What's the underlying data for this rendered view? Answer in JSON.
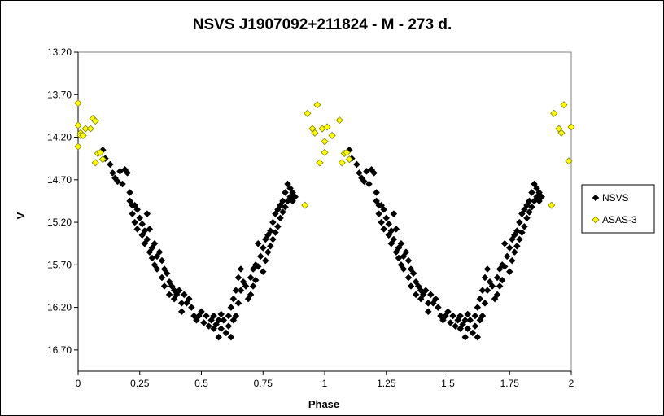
{
  "chart_data": {
    "type": "scatter",
    "title": "NSVS J1907092+211824  - M - 273 d.",
    "xlabel": "Phase",
    "ylabel": "V",
    "xlim": [
      0,
      2
    ],
    "ylim": [
      16.95,
      13.2
    ],
    "y_inverted": true,
    "grid": false,
    "legend_position": "right",
    "x_ticks": [
      "0",
      "0.25",
      "0.5",
      "0.75",
      "1",
      "1.25",
      "1.5",
      "1.75",
      "2"
    ],
    "y_ticks": [
      "13.20",
      "13.70",
      "14.20",
      "14.70",
      "15.20",
      "15.70",
      "16.20",
      "16.70"
    ],
    "series": [
      {
        "name": "NSVS",
        "color": "#000000",
        "marker": "diamond",
        "points": [
          [
            0.1,
            14.35
          ],
          [
            0.11,
            14.45
          ],
          [
            0.13,
            14.52
          ],
          [
            0.14,
            14.62
          ],
          [
            0.15,
            14.68
          ],
          [
            0.16,
            14.72
          ],
          [
            0.17,
            14.6
          ],
          [
            0.18,
            14.75
          ],
          [
            0.19,
            14.58
          ],
          [
            0.2,
            14.62
          ],
          [
            0.21,
            14.85
          ],
          [
            0.21,
            14.95
          ],
          [
            0.22,
            15.0
          ],
          [
            0.22,
            15.1
          ],
          [
            0.23,
            15.0
          ],
          [
            0.23,
            15.2
          ],
          [
            0.24,
            15.05
          ],
          [
            0.24,
            15.28
          ],
          [
            0.25,
            15.15
          ],
          [
            0.26,
            15.35
          ],
          [
            0.26,
            15.22
          ],
          [
            0.27,
            15.3
          ],
          [
            0.27,
            15.45
          ],
          [
            0.28,
            15.1
          ],
          [
            0.28,
            15.4
          ],
          [
            0.29,
            15.55
          ],
          [
            0.29,
            15.28
          ],
          [
            0.3,
            15.5
          ],
          [
            0.3,
            15.62
          ],
          [
            0.31,
            15.7
          ],
          [
            0.31,
            15.45
          ],
          [
            0.32,
            15.6
          ],
          [
            0.32,
            15.75
          ],
          [
            0.33,
            15.55
          ],
          [
            0.34,
            15.65
          ],
          [
            0.34,
            15.85
          ],
          [
            0.35,
            15.75
          ],
          [
            0.35,
            15.95
          ],
          [
            0.36,
            15.8
          ],
          [
            0.37,
            15.9
          ],
          [
            0.37,
            16.05
          ],
          [
            0.38,
            15.95
          ],
          [
            0.39,
            16.0
          ],
          [
            0.39,
            16.1
          ],
          [
            0.4,
            16.05
          ],
          [
            0.41,
            16.0
          ],
          [
            0.42,
            16.15
          ],
          [
            0.42,
            16.25
          ],
          [
            0.43,
            16.05
          ],
          [
            0.44,
            16.15
          ],
          [
            0.45,
            16.1
          ],
          [
            0.46,
            16.2
          ],
          [
            0.47,
            16.3
          ],
          [
            0.48,
            16.35
          ],
          [
            0.49,
            16.3
          ],
          [
            0.5,
            16.25
          ],
          [
            0.51,
            16.38
          ],
          [
            0.52,
            16.3
          ],
          [
            0.53,
            16.42
          ],
          [
            0.54,
            16.35
          ],
          [
            0.55,
            16.3
          ],
          [
            0.55,
            16.45
          ],
          [
            0.56,
            16.4
          ],
          [
            0.57,
            16.55
          ],
          [
            0.57,
            16.35
          ],
          [
            0.58,
            16.45
          ],
          [
            0.58,
            16.28
          ],
          [
            0.59,
            16.35
          ],
          [
            0.6,
            16.5
          ],
          [
            0.61,
            16.3
          ],
          [
            0.61,
            16.42
          ],
          [
            0.62,
            16.2
          ],
          [
            0.62,
            16.55
          ],
          [
            0.63,
            16.1
          ],
          [
            0.63,
            16.35
          ],
          [
            0.64,
            16.0
          ],
          [
            0.64,
            16.3
          ],
          [
            0.65,
            15.85
          ],
          [
            0.65,
            16.15
          ],
          [
            0.66,
            15.75
          ],
          [
            0.66,
            16.0
          ],
          [
            0.67,
            15.9
          ],
          [
            0.68,
            15.95
          ],
          [
            0.69,
            16.1
          ],
          [
            0.7,
            15.85
          ],
          [
            0.7,
            16.05
          ],
          [
            0.71,
            15.75
          ],
          [
            0.71,
            15.95
          ],
          [
            0.72,
            15.7
          ],
          [
            0.72,
            15.88
          ],
          [
            0.73,
            15.45
          ],
          [
            0.73,
            15.72
          ],
          [
            0.74,
            15.6
          ],
          [
            0.75,
            15.5
          ],
          [
            0.75,
            15.78
          ],
          [
            0.76,
            15.4
          ],
          [
            0.76,
            15.65
          ],
          [
            0.77,
            15.35
          ],
          [
            0.77,
            15.55
          ],
          [
            0.78,
            15.3
          ],
          [
            0.78,
            15.48
          ],
          [
            0.79,
            15.2
          ],
          [
            0.79,
            15.4
          ],
          [
            0.8,
            15.1
          ],
          [
            0.8,
            15.32
          ],
          [
            0.81,
            15.05
          ],
          [
            0.81,
            15.25
          ],
          [
            0.82,
            15.0
          ],
          [
            0.82,
            15.15
          ],
          [
            0.83,
            14.95
          ],
          [
            0.83,
            15.08
          ],
          [
            0.84,
            14.85
          ],
          [
            0.84,
            15.02
          ],
          [
            0.85,
            14.75
          ],
          [
            0.85,
            14.95
          ],
          [
            0.86,
            14.8
          ],
          [
            0.86,
            14.9
          ],
          [
            0.87,
            14.85
          ],
          [
            0.87,
            14.95
          ],
          [
            0.88,
            14.9
          ],
          [
            1.1,
            14.35
          ],
          [
            1.11,
            14.45
          ],
          [
            1.13,
            14.52
          ],
          [
            1.14,
            14.62
          ],
          [
            1.15,
            14.68
          ],
          [
            1.16,
            14.72
          ],
          [
            1.17,
            14.6
          ],
          [
            1.18,
            14.75
          ],
          [
            1.19,
            14.58
          ],
          [
            1.2,
            14.62
          ],
          [
            1.21,
            14.85
          ],
          [
            1.21,
            14.95
          ],
          [
            1.22,
            15.0
          ],
          [
            1.22,
            15.1
          ],
          [
            1.23,
            15.0
          ],
          [
            1.23,
            15.2
          ],
          [
            1.24,
            15.05
          ],
          [
            1.24,
            15.28
          ],
          [
            1.25,
            15.15
          ],
          [
            1.26,
            15.35
          ],
          [
            1.26,
            15.22
          ],
          [
            1.27,
            15.3
          ],
          [
            1.27,
            15.45
          ],
          [
            1.28,
            15.1
          ],
          [
            1.28,
            15.4
          ],
          [
            1.29,
            15.55
          ],
          [
            1.29,
            15.28
          ],
          [
            1.3,
            15.5
          ],
          [
            1.3,
            15.62
          ],
          [
            1.31,
            15.7
          ],
          [
            1.31,
            15.45
          ],
          [
            1.32,
            15.6
          ],
          [
            1.32,
            15.75
          ],
          [
            1.33,
            15.55
          ],
          [
            1.34,
            15.65
          ],
          [
            1.34,
            15.85
          ],
          [
            1.35,
            15.75
          ],
          [
            1.35,
            15.95
          ],
          [
            1.36,
            15.8
          ],
          [
            1.37,
            15.9
          ],
          [
            1.37,
            16.05
          ],
          [
            1.38,
            15.95
          ],
          [
            1.39,
            16.0
          ],
          [
            1.39,
            16.1
          ],
          [
            1.4,
            16.05
          ],
          [
            1.41,
            16.0
          ],
          [
            1.42,
            16.15
          ],
          [
            1.42,
            16.25
          ],
          [
            1.43,
            16.05
          ],
          [
            1.44,
            16.15
          ],
          [
            1.45,
            16.1
          ],
          [
            1.46,
            16.2
          ],
          [
            1.47,
            16.3
          ],
          [
            1.48,
            16.35
          ],
          [
            1.49,
            16.3
          ],
          [
            1.5,
            16.25
          ],
          [
            1.51,
            16.38
          ],
          [
            1.52,
            16.3
          ],
          [
            1.53,
            16.42
          ],
          [
            1.54,
            16.35
          ],
          [
            1.55,
            16.3
          ],
          [
            1.55,
            16.45
          ],
          [
            1.56,
            16.4
          ],
          [
            1.57,
            16.55
          ],
          [
            1.57,
            16.35
          ],
          [
            1.58,
            16.45
          ],
          [
            1.58,
            16.28
          ],
          [
            1.59,
            16.35
          ],
          [
            1.6,
            16.5
          ],
          [
            1.61,
            16.3
          ],
          [
            1.61,
            16.42
          ],
          [
            1.62,
            16.2
          ],
          [
            1.62,
            16.55
          ],
          [
            1.63,
            16.1
          ],
          [
            1.63,
            16.35
          ],
          [
            1.64,
            16.0
          ],
          [
            1.64,
            16.3
          ],
          [
            1.65,
            15.85
          ],
          [
            1.65,
            16.15
          ],
          [
            1.66,
            15.75
          ],
          [
            1.66,
            16.0
          ],
          [
            1.67,
            15.9
          ],
          [
            1.68,
            15.95
          ],
          [
            1.69,
            16.1
          ],
          [
            1.7,
            15.85
          ],
          [
            1.7,
            16.05
          ],
          [
            1.71,
            15.75
          ],
          [
            1.71,
            15.95
          ],
          [
            1.72,
            15.7
          ],
          [
            1.72,
            15.88
          ],
          [
            1.73,
            15.45
          ],
          [
            1.73,
            15.72
          ],
          [
            1.74,
            15.6
          ],
          [
            1.75,
            15.5
          ],
          [
            1.75,
            15.78
          ],
          [
            1.76,
            15.4
          ],
          [
            1.76,
            15.65
          ],
          [
            1.77,
            15.35
          ],
          [
            1.77,
            15.55
          ],
          [
            1.78,
            15.3
          ],
          [
            1.78,
            15.48
          ],
          [
            1.79,
            15.2
          ],
          [
            1.79,
            15.4
          ],
          [
            1.8,
            15.1
          ],
          [
            1.8,
            15.32
          ],
          [
            1.81,
            15.05
          ],
          [
            1.81,
            15.25
          ],
          [
            1.82,
            15.0
          ],
          [
            1.82,
            15.15
          ],
          [
            1.83,
            14.95
          ],
          [
            1.83,
            15.08
          ],
          [
            1.84,
            14.85
          ],
          [
            1.84,
            15.02
          ],
          [
            1.85,
            14.75
          ],
          [
            1.85,
            14.95
          ],
          [
            1.86,
            14.8
          ],
          [
            1.86,
            14.9
          ],
          [
            1.87,
            14.85
          ],
          [
            1.87,
            14.95
          ],
          [
            1.88,
            14.9
          ]
        ]
      },
      {
        "name": "ASAS-3",
        "color": "#ffff00",
        "marker": "diamond",
        "points": [
          [
            0.0,
            13.8
          ],
          [
            0.0,
            14.06
          ],
          [
            0.01,
            14.15
          ],
          [
            0.01,
            14.18
          ],
          [
            0.0,
            14.31
          ],
          [
            0.02,
            14.18
          ],
          [
            0.03,
            14.1
          ],
          [
            0.05,
            14.1
          ],
          [
            0.06,
            13.98
          ],
          [
            0.07,
            14.01
          ],
          [
            0.07,
            14.5
          ],
          [
            0.08,
            14.39
          ],
          [
            0.09,
            14.38
          ],
          [
            0.1,
            14.46
          ],
          [
            0.92,
            15.0
          ],
          [
            0.93,
            13.92
          ],
          [
            0.95,
            14.1
          ],
          [
            0.96,
            14.15
          ],
          [
            0.97,
            13.82
          ],
          [
            0.98,
            14.5
          ],
          [
            0.99,
            14.1
          ],
          [
            1.0,
            14.25
          ],
          [
            1.0,
            14.38
          ],
          [
            1.01,
            14.08
          ],
          [
            1.03,
            14.18
          ],
          [
            1.06,
            14.0
          ],
          [
            1.07,
            14.5
          ],
          [
            1.08,
            14.39
          ],
          [
            1.09,
            14.38
          ],
          [
            1.1,
            14.46
          ],
          [
            1.92,
            15.0
          ],
          [
            1.93,
            13.92
          ],
          [
            1.95,
            14.1
          ],
          [
            1.96,
            14.15
          ],
          [
            1.97,
            13.82
          ],
          [
            1.99,
            14.48
          ],
          [
            2.0,
            14.08
          ]
        ]
      }
    ]
  }
}
